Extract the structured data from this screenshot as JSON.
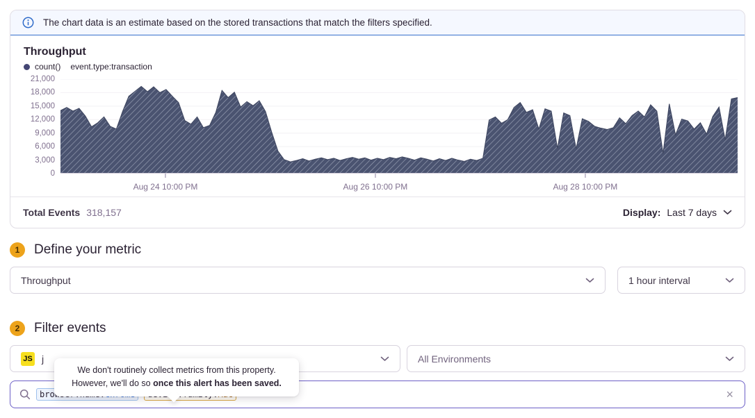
{
  "banner": {
    "text": "The chart data is an estimate based on the stored transactions that match the filters specified."
  },
  "chart_panel": {
    "title": "Throughput",
    "legend": {
      "series_label": "count()",
      "filter_label": "event.type:transaction"
    },
    "footer": {
      "total_label": "Total Events",
      "total_value": "318,157",
      "display_label": "Display:",
      "display_value": "Last 7 days"
    }
  },
  "chart_data": {
    "type": "area",
    "title": "Throughput",
    "ylabel": "count()",
    "ylim": [
      0,
      21000
    ],
    "grid": true,
    "fill_color": "#4A5370",
    "hatch_color": "#9BA2B6",
    "line_color": "#3E4660",
    "grid_color": "#F2F0F4",
    "axis_color": "#CFC9D6",
    "tick_color": "#B3ABC0",
    "ytick_labels": [
      "21,000",
      "18,000",
      "15,000",
      "12,000",
      "9,000",
      "6,000",
      "3,000",
      "0"
    ],
    "xticks": [
      {
        "label": "Aug 24 10:00 PM",
        "pos": 0.155
      },
      {
        "label": "Aug 26 10:00 PM",
        "pos": 0.465
      },
      {
        "label": "Aug 28 10:00 PM",
        "pos": 0.775
      }
    ],
    "series": [
      {
        "name": "count() event.type:transaction",
        "values": [
          14000,
          14700,
          13900,
          14500,
          12800,
          10400,
          11300,
          12600,
          10500,
          9900,
          13800,
          17200,
          18300,
          19400,
          18200,
          19300,
          18000,
          18700,
          17200,
          15800,
          11800,
          11000,
          12600,
          10200,
          10700,
          13600,
          18500,
          16900,
          18100,
          14800,
          16000,
          15100,
          16200,
          13800,
          9200,
          5000,
          3100,
          2600,
          2900,
          3300,
          2800,
          3200,
          3500,
          3100,
          3400,
          2900,
          3300,
          3600,
          3200,
          3500,
          3000,
          3400,
          3100,
          3600,
          3300,
          3700,
          3400,
          3000,
          3500,
          3200,
          2800,
          3300,
          2900,
          3400,
          3000,
          2700,
          3200,
          2900,
          3400,
          11900,
          12600,
          11200,
          12000,
          14700,
          15800,
          13600,
          14200,
          9900,
          14400,
          13900,
          5600,
          13500,
          12900,
          5500,
          12200,
          11600,
          10500,
          10100,
          9800,
          10200,
          12400,
          11100,
          12900,
          13900,
          12600,
          15300,
          13900,
          4500,
          15500,
          8600,
          12100,
          11700,
          9900,
          11300,
          8800,
          12700,
          14800,
          7500,
          16600,
          16900
        ]
      }
    ]
  },
  "metric_section": {
    "step": "1",
    "title": "Define your metric",
    "metric_value": "Throughput",
    "interval_value": "1 hour interval"
  },
  "filter_section": {
    "step": "2",
    "title": "Filter events",
    "project_badge": "JS",
    "project_name": "j",
    "environment_value": "All Environments"
  },
  "tooltip": {
    "line1": "We don't routinely collect metrics from this property.",
    "line2_regular": "However, we'll do so ",
    "line2_bold": "once this alert has been saved."
  },
  "search": {
    "tokens": [
      {
        "key": "browser.name:",
        "value": "Chrome",
        "style": "blue"
      },
      {
        "key": "device.family:",
        "value": "Mac",
        "style": "warn"
      }
    ],
    "clear_label": "×"
  },
  "colors": {
    "accent_purple": "#6C5FC7",
    "banner_blue": "#3670CC",
    "banner_bg": "#F5F8FF",
    "step_badge": "#EDA31B",
    "js_yellow": "#F7DF1E",
    "token_blue_border": "#9EC1EC",
    "token_blue_text": "#3272D9",
    "token_warn_border": "#D9A641",
    "token_warn_text": "#A3610F",
    "chart_fill": "#4A5370"
  }
}
